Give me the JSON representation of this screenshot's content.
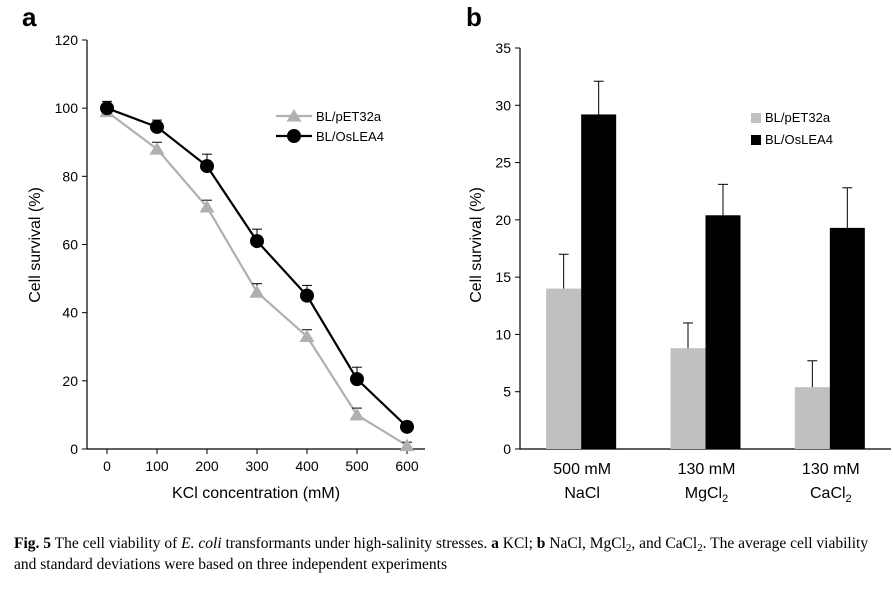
{
  "panel_a": {
    "letter": "a",
    "chart_data": {
      "type": "line",
      "x": [
        0,
        100,
        200,
        300,
        400,
        500,
        600
      ],
      "xticks": [
        "0",
        "100",
        "200",
        "300",
        "400",
        "500",
        "600"
      ],
      "xlabel": "KCl  concentration (mM)",
      "ylabel": "Cell survival (%)",
      "ylim": [
        0,
        120
      ],
      "yticks": [
        "0",
        "20",
        "40",
        "60",
        "80",
        "100",
        "120"
      ],
      "legend_position": "top-right",
      "series": [
        {
          "name": "BL/pET32a",
          "marker": "triangle",
          "color": "#b0b0b0",
          "values": [
            99,
            88,
            71,
            46,
            33,
            10,
            1
          ],
          "errors": [
            2,
            2,
            2,
            2.5,
            2,
            2,
            1
          ]
        },
        {
          "name": "BL/OsLEA4",
          "marker": "circle",
          "color": "#000000",
          "values": [
            100,
            94.5,
            83,
            61,
            45,
            20.5,
            6.5
          ],
          "errors": [
            2,
            2,
            3.5,
            3.5,
            3,
            3.5,
            1.5
          ]
        }
      ]
    }
  },
  "panel_b": {
    "letter": "b",
    "chart_data": {
      "type": "bar",
      "categories": [
        {
          "line1": "500 mM",
          "line2": "NaCl"
        },
        {
          "line1": "130 mM",
          "line2": "MgCl",
          "sub": "2"
        },
        {
          "line1": "130 mM",
          "line2": "CaCl",
          "sub": "2"
        }
      ],
      "ylabel": "Cell survival (%)",
      "ylim": [
        0,
        35
      ],
      "yticks": [
        "0",
        "5",
        "10",
        "15",
        "20",
        "25",
        "30",
        "35"
      ],
      "legend_position": "top-right",
      "series": [
        {
          "name": "BL/pET32a",
          "color": "#c0c0c0",
          "values": [
            14,
            8.8,
            5.4
          ],
          "errors": [
            3,
            2.2,
            2.3
          ]
        },
        {
          "name": "BL/OsLEA4",
          "color": "#000000",
          "values": [
            29.2,
            20.4,
            19.3
          ],
          "errors": [
            2.9,
            2.7,
            3.5
          ]
        }
      ]
    }
  },
  "caption": {
    "label": "Fig. 5",
    "text_1": "  The cell viability of ",
    "organism": "E. coli",
    "text_2": " transformants under high-salinity stresses. ",
    "a_letter": "a",
    "text_3": " KCl; ",
    "b_letter": "b",
    "text_4": " NaCl, MgCl",
    "sub_1": "2",
    "text_5": ", and CaCl",
    "sub_2": "2",
    "text_6": ". The average cell viability and standard deviations were based on three independent experiments"
  }
}
